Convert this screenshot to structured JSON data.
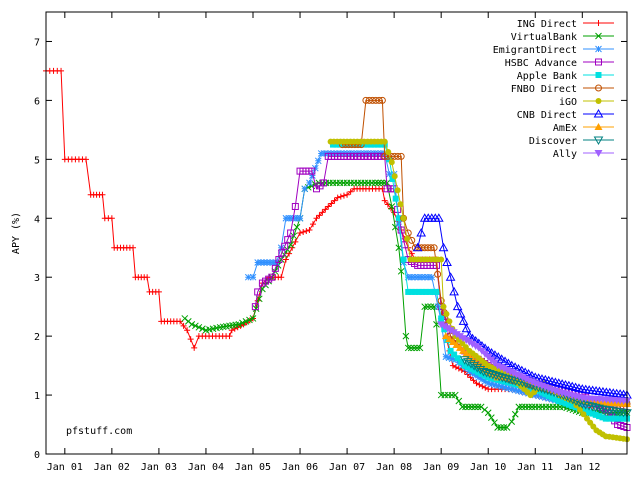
{
  "chart_data": {
    "type": "line",
    "title": "",
    "xlabel": "",
    "ylabel": "APY (%)",
    "xlim": [
      2000.6,
      2012.95
    ],
    "ylim": [
      0,
      7.5
    ],
    "y_ticks": [
      0,
      1,
      2,
      3,
      4,
      5,
      6,
      7
    ],
    "x_ticks": [
      {
        "label": "Jan 01",
        "value": 2001
      },
      {
        "label": "Jan 02",
        "value": 2002
      },
      {
        "label": "Jan 03",
        "value": 2003
      },
      {
        "label": "Jan 04",
        "value": 2004
      },
      {
        "label": "Jan 05",
        "value": 2005
      },
      {
        "label": "Jan 06",
        "value": 2006
      },
      {
        "label": "Jan 07",
        "value": 2007
      },
      {
        "label": "Jan 08",
        "value": 2008
      },
      {
        "label": "Jan 09",
        "value": 2009
      },
      {
        "label": "Jan 10",
        "value": 2010
      },
      {
        "label": "Jan 11",
        "value": 2011
      },
      {
        "label": "Jan 12",
        "value": 2012
      }
    ],
    "legend_position": "top-right",
    "annotation": "pfstuff.com",
    "series": [
      {
        "name": "ING Direct",
        "color": "#ff0000",
        "marker": "plus",
        "points": [
          [
            2000.6,
            6.5
          ],
          [
            2000.92,
            6.5
          ],
          [
            2001.0,
            5.0
          ],
          [
            2001.45,
            5.0
          ],
          [
            2001.55,
            4.4
          ],
          [
            2001.8,
            4.4
          ],
          [
            2001.85,
            4.0
          ],
          [
            2002.0,
            4.0
          ],
          [
            2002.05,
            3.5
          ],
          [
            2002.45,
            3.5
          ],
          [
            2002.5,
            3.0
          ],
          [
            2002.75,
            3.0
          ],
          [
            2002.8,
            2.75
          ],
          [
            2003.0,
            2.75
          ],
          [
            2003.05,
            2.25
          ],
          [
            2003.45,
            2.25
          ],
          [
            2003.6,
            2.1
          ],
          [
            2003.75,
            1.8
          ],
          [
            2003.85,
            2.0
          ],
          [
            2004.5,
            2.0
          ],
          [
            2004.55,
            2.1
          ],
          [
            2004.8,
            2.2
          ],
          [
            2005.0,
            2.3
          ],
          [
            2005.1,
            2.6
          ],
          [
            2005.2,
            2.9
          ],
          [
            2005.35,
            3.0
          ],
          [
            2005.6,
            3.0
          ],
          [
            2005.7,
            3.3
          ],
          [
            2005.9,
            3.6
          ],
          [
            2006.0,
            3.75
          ],
          [
            2006.2,
            3.8
          ],
          [
            2006.35,
            4.0
          ],
          [
            2006.6,
            4.2
          ],
          [
            2006.8,
            4.35
          ],
          [
            2007.0,
            4.4
          ],
          [
            2007.15,
            4.5
          ],
          [
            2007.4,
            4.5
          ],
          [
            2007.75,
            4.5
          ],
          [
            2007.8,
            4.3
          ],
          [
            2008.0,
            4.1
          ],
          [
            2008.15,
            3.8
          ],
          [
            2008.3,
            3.5
          ],
          [
            2008.45,
            3.3
          ],
          [
            2008.6,
            3.3
          ],
          [
            2008.9,
            3.3
          ],
          [
            2009.0,
            2.5
          ],
          [
            2009.1,
            2.0
          ],
          [
            2009.25,
            1.5
          ],
          [
            2009.5,
            1.4
          ],
          [
            2009.75,
            1.2
          ],
          [
            2010.0,
            1.1
          ],
          [
            2010.5,
            1.1
          ],
          [
            2011.0,
            1.0
          ],
          [
            2011.5,
            0.9
          ],
          [
            2012.0,
            0.8
          ],
          [
            2012.6,
            0.8
          ],
          [
            2012.95,
            0.75
          ]
        ]
      },
      {
        "name": "VirtualBank",
        "color": "#00a000",
        "marker": "x",
        "points": [
          [
            2003.55,
            2.3
          ],
          [
            2003.7,
            2.2
          ],
          [
            2004.0,
            2.1
          ],
          [
            2004.3,
            2.15
          ],
          [
            2004.7,
            2.2
          ],
          [
            2005.0,
            2.3
          ],
          [
            2005.2,
            2.8
          ],
          [
            2005.4,
            3.0
          ],
          [
            2005.6,
            3.3
          ],
          [
            2005.8,
            3.55
          ],
          [
            2006.0,
            4.0
          ],
          [
            2006.1,
            4.5
          ],
          [
            2006.4,
            4.6
          ],
          [
            2007.0,
            4.6
          ],
          [
            2007.6,
            4.6
          ],
          [
            2007.85,
            4.6
          ],
          [
            2007.95,
            4.2
          ],
          [
            2008.1,
            3.5
          ],
          [
            2008.15,
            3.1
          ],
          [
            2008.25,
            2.0
          ],
          [
            2008.3,
            1.8
          ],
          [
            2008.55,
            1.8
          ],
          [
            2008.65,
            2.5
          ],
          [
            2008.85,
            2.5
          ],
          [
            2008.9,
            2.2
          ],
          [
            2009.0,
            1.0
          ],
          [
            2009.3,
            1.0
          ],
          [
            2009.45,
            0.8
          ],
          [
            2009.85,
            0.8
          ],
          [
            2010.0,
            0.7
          ],
          [
            2010.2,
            0.45
          ],
          [
            2010.4,
            0.45
          ],
          [
            2010.5,
            0.55
          ],
          [
            2010.65,
            0.8
          ],
          [
            2011.0,
            0.8
          ],
          [
            2011.6,
            0.8
          ],
          [
            2012.0,
            0.7
          ],
          [
            2012.95,
            0.7
          ]
        ]
      },
      {
        "name": "EmigrantDirect",
        "color": "#3090ff",
        "marker": "star",
        "points": [
          [
            2004.9,
            3.0
          ],
          [
            2005.0,
            3.0
          ],
          [
            2005.1,
            3.25
          ],
          [
            2005.5,
            3.25
          ],
          [
            2005.6,
            3.5
          ],
          [
            2005.7,
            4.0
          ],
          [
            2006.0,
            4.0
          ],
          [
            2006.1,
            4.5
          ],
          [
            2006.2,
            4.6
          ],
          [
            2006.45,
            5.1
          ],
          [
            2007.0,
            5.1
          ],
          [
            2007.8,
            5.1
          ],
          [
            2007.9,
            4.75
          ],
          [
            2008.0,
            4.75
          ],
          [
            2008.1,
            3.9
          ],
          [
            2008.2,
            3.25
          ],
          [
            2008.3,
            3.0
          ],
          [
            2008.8,
            3.0
          ],
          [
            2009.0,
            2.25
          ],
          [
            2009.1,
            1.65
          ],
          [
            2009.3,
            1.6
          ],
          [
            2009.6,
            1.4
          ],
          [
            2010.0,
            1.2
          ],
          [
            2010.5,
            1.1
          ],
          [
            2011.0,
            1.0
          ],
          [
            2011.5,
            0.9
          ],
          [
            2012.0,
            0.85
          ],
          [
            2012.95,
            0.85
          ]
        ]
      },
      {
        "name": "HSBC Advance",
        "color": "#a000c0",
        "marker": "square",
        "points": [
          [
            2005.05,
            2.5
          ],
          [
            2005.1,
            2.75
          ],
          [
            2005.2,
            2.9
          ],
          [
            2005.4,
            3.0
          ],
          [
            2005.55,
            3.3
          ],
          [
            2005.8,
            3.75
          ],
          [
            2005.9,
            4.2
          ],
          [
            2006.0,
            4.8
          ],
          [
            2006.25,
            4.8
          ],
          [
            2006.35,
            4.5
          ],
          [
            2006.5,
            4.6
          ],
          [
            2006.6,
            5.05
          ],
          [
            2007.0,
            5.05
          ],
          [
            2007.8,
            5.05
          ],
          [
            2007.85,
            4.5
          ],
          [
            2008.0,
            4.5
          ],
          [
            2008.15,
            3.8
          ],
          [
            2008.3,
            3.3
          ],
          [
            2008.5,
            3.2
          ],
          [
            2008.9,
            3.2
          ],
          [
            2009.0,
            2.5
          ],
          [
            2009.2,
            2.0
          ],
          [
            2009.5,
            1.75
          ],
          [
            2010.0,
            1.5
          ],
          [
            2010.5,
            1.3
          ],
          [
            2011.0,
            1.2
          ],
          [
            2011.5,
            1.1
          ],
          [
            2012.0,
            1.0
          ],
          [
            2012.5,
            0.75
          ],
          [
            2012.75,
            0.5
          ],
          [
            2012.95,
            0.45
          ]
        ]
      },
      {
        "name": "Apple Bank",
        "color": "#00e0e0",
        "marker": "filled-square",
        "points": [
          [
            2006.7,
            5.25
          ],
          [
            2007.0,
            5.25
          ],
          [
            2007.8,
            5.25
          ],
          [
            2007.9,
            5.0
          ],
          [
            2008.1,
            4.0
          ],
          [
            2008.2,
            3.3
          ],
          [
            2008.3,
            2.75
          ],
          [
            2008.9,
            2.75
          ],
          [
            2009.0,
            2.3
          ],
          [
            2009.2,
            1.75
          ],
          [
            2009.5,
            1.5
          ],
          [
            2010.0,
            1.3
          ],
          [
            2010.5,
            1.2
          ],
          [
            2011.0,
            1.1
          ],
          [
            2011.5,
            0.9
          ],
          [
            2012.0,
            0.75
          ],
          [
            2012.5,
            0.6
          ],
          [
            2012.95,
            0.6
          ]
        ]
      },
      {
        "name": "FNBO Direct",
        "color": "#c05000",
        "marker": "circle",
        "points": [
          [
            2006.9,
            5.25
          ],
          [
            2007.3,
            5.25
          ],
          [
            2007.4,
            6.0
          ],
          [
            2007.75,
            6.0
          ],
          [
            2007.8,
            5.05
          ],
          [
            2008.15,
            5.05
          ],
          [
            2008.2,
            4.0
          ],
          [
            2008.3,
            3.75
          ],
          [
            2008.45,
            3.5
          ],
          [
            2008.85,
            3.5
          ],
          [
            2009.0,
            2.6
          ],
          [
            2009.2,
            2.0
          ],
          [
            2009.5,
            1.75
          ],
          [
            2010.0,
            1.4
          ],
          [
            2010.5,
            1.25
          ],
          [
            2011.0,
            1.15
          ],
          [
            2011.5,
            1.05
          ],
          [
            2012.0,
            0.9
          ],
          [
            2012.95,
            0.85
          ]
        ]
      },
      {
        "name": "iGO",
        "color": "#c0c000",
        "marker": "filled-circle",
        "points": [
          [
            2006.65,
            5.3
          ],
          [
            2007.0,
            5.3
          ],
          [
            2007.8,
            5.3
          ],
          [
            2007.95,
            4.95
          ],
          [
            2008.2,
            4.0
          ],
          [
            2008.35,
            3.3
          ],
          [
            2009.0,
            3.3
          ],
          [
            2009.05,
            2.5
          ],
          [
            2009.3,
            2.0
          ],
          [
            2009.6,
            1.75
          ],
          [
            2010.0,
            1.5
          ],
          [
            2010.5,
            1.3
          ],
          [
            2010.9,
            1.0
          ],
          [
            2011.2,
            1.2
          ],
          [
            2011.5,
            1.0
          ],
          [
            2011.8,
            0.9
          ],
          [
            2012.1,
            0.6
          ],
          [
            2012.3,
            0.4
          ],
          [
            2012.5,
            0.3
          ],
          [
            2012.95,
            0.25
          ]
        ]
      },
      {
        "name": "CNB Direct",
        "color": "#0000ff",
        "marker": "triangle",
        "points": [
          [
            2008.5,
            3.5
          ],
          [
            2008.65,
            4.0
          ],
          [
            2008.95,
            4.0
          ],
          [
            2009.05,
            3.5
          ],
          [
            2009.2,
            3.0
          ],
          [
            2009.35,
            2.5
          ],
          [
            2009.6,
            2.0
          ],
          [
            2010.0,
            1.75
          ],
          [
            2010.5,
            1.5
          ],
          [
            2011.0,
            1.3
          ],
          [
            2011.5,
            1.2
          ],
          [
            2012.0,
            1.1
          ],
          [
            2012.95,
            1.0
          ]
        ]
      },
      {
        "name": "AmEx",
        "color": "#ffa000",
        "marker": "filled-triangle",
        "points": [
          [
            2009.1,
            2.0
          ],
          [
            2009.4,
            1.8
          ],
          [
            2009.8,
            1.5
          ],
          [
            2010.2,
            1.3
          ],
          [
            2010.6,
            1.3
          ],
          [
            2011.0,
            1.2
          ],
          [
            2011.5,
            1.05
          ],
          [
            2012.0,
            0.9
          ],
          [
            2012.95,
            0.85
          ]
        ]
      },
      {
        "name": "Discover",
        "color": "#008080",
        "marker": "inv-triangle",
        "points": [
          [
            2009.5,
            1.6
          ],
          [
            2009.9,
            1.4
          ],
          [
            2010.3,
            1.3
          ],
          [
            2010.8,
            1.2
          ],
          [
            2011.2,
            1.1
          ],
          [
            2011.6,
            1.0
          ],
          [
            2012.0,
            0.85
          ],
          [
            2012.5,
            0.75
          ],
          [
            2012.95,
            0.7
          ]
        ]
      },
      {
        "name": "Ally",
        "color": "#a060ff",
        "marker": "filled-inv-triangle",
        "points": [
          [
            2009.0,
            2.2
          ],
          [
            2009.4,
            2.0
          ],
          [
            2009.8,
            1.8
          ],
          [
            2010.2,
            1.5
          ],
          [
            2010.6,
            1.35
          ],
          [
            2011.0,
            1.2
          ],
          [
            2011.5,
            1.05
          ],
          [
            2012.0,
            0.95
          ],
          [
            2012.95,
            0.9
          ]
        ]
      }
    ]
  }
}
